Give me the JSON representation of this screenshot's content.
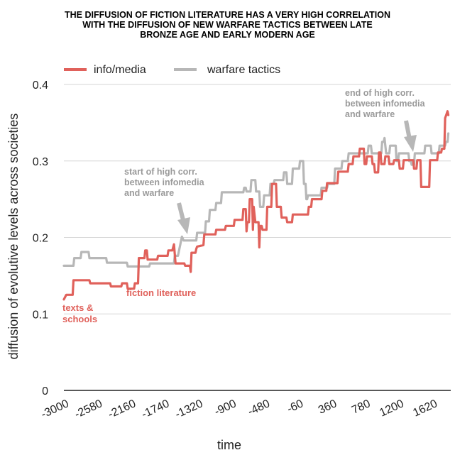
{
  "chart_data": {
    "type": "line",
    "title_lines": [
      "THE DIFFUSION OF FICTION LITERATURE HAS A VERY HIGH CORRELATION",
      "WITH THE DIFFUSION OF NEW WARFARE TACTICS BETWEEN LATE",
      "BRONZE AGE AND EARLY MODERN AGE"
    ],
    "xlabel": "time",
    "ylabel": "diffusion of evolutive levels across societies",
    "xlim": [
      -3000,
      1850
    ],
    "ylim": [
      0,
      0.4
    ],
    "x_ticks": [
      -3000,
      -2580,
      -2160,
      -1740,
      -1320,
      -900,
      -480,
      -60,
      360,
      780,
      1200,
      1620
    ],
    "x_tick_labels": [
      "-3000",
      "-2580",
      "-2160",
      "-1740",
      "-1320",
      "-900",
      "-480",
      "-60",
      "360",
      "780",
      "1200",
      "1620"
    ],
    "y_ticks": [
      0,
      0.1,
      0.2,
      0.3,
      0.4
    ],
    "y_tick_labels": [
      "0",
      "0.1",
      "0.2",
      "0.3",
      "0.4"
    ],
    "grid": "horizontal",
    "legend_position": "top-left",
    "series": [
      {
        "name": "info/media",
        "color": "#e0615b",
        "points": [
          [
            -3000,
            0.119
          ],
          [
            -2970,
            0.125
          ],
          [
            -2890,
            0.125
          ],
          [
            -2880,
            0.144
          ],
          [
            -2680,
            0.144
          ],
          [
            -2670,
            0.14
          ],
          [
            -2420,
            0.14
          ],
          [
            -2410,
            0.136
          ],
          [
            -2280,
            0.136
          ],
          [
            -2270,
            0.14
          ],
          [
            -2210,
            0.14
          ],
          [
            -2200,
            0.133
          ],
          [
            -2120,
            0.133
          ],
          [
            -2110,
            0.14
          ],
          [
            -2070,
            0.14
          ],
          [
            -2060,
            0.173
          ],
          [
            -1990,
            0.173
          ],
          [
            -1980,
            0.183
          ],
          [
            -1960,
            0.183
          ],
          [
            -1950,
            0.171
          ],
          [
            -1830,
            0.171
          ],
          [
            -1820,
            0.176
          ],
          [
            -1700,
            0.176
          ],
          [
            -1690,
            0.183
          ],
          [
            -1640,
            0.183
          ],
          [
            -1620,
            0.191
          ],
          [
            -1600,
            0.166
          ],
          [
            -1490,
            0.166
          ],
          [
            -1480,
            0.163
          ],
          [
            -1420,
            0.163
          ],
          [
            -1410,
            0.155
          ],
          [
            -1400,
            0.18
          ],
          [
            -1350,
            0.18
          ],
          [
            -1340,
            0.185
          ],
          [
            -1330,
            0.188
          ],
          [
            -1250,
            0.19
          ],
          [
            -1240,
            0.204
          ],
          [
            -1100,
            0.204
          ],
          [
            -1090,
            0.21
          ],
          [
            -980,
            0.21
          ],
          [
            -970,
            0.215
          ],
          [
            -870,
            0.215
          ],
          [
            -860,
            0.223
          ],
          [
            -760,
            0.223
          ],
          [
            -750,
            0.237
          ],
          [
            -720,
            0.237
          ],
          [
            -710,
            0.208
          ],
          [
            -700,
            0.22
          ],
          [
            -680,
            0.22
          ],
          [
            -670,
            0.25
          ],
          [
            -640,
            0.25
          ],
          [
            -630,
            0.21
          ],
          [
            -620,
            0.24
          ],
          [
            -600,
            0.22
          ],
          [
            -560,
            0.22
          ],
          [
            -550,
            0.187
          ],
          [
            -540,
            0.215
          ],
          [
            -520,
            0.215
          ],
          [
            -510,
            0.21
          ],
          [
            -460,
            0.21
          ],
          [
            -450,
            0.24
          ],
          [
            -400,
            0.24
          ],
          [
            -390,
            0.27
          ],
          [
            -340,
            0.27
          ],
          [
            -330,
            0.24
          ],
          [
            -280,
            0.24
          ],
          [
            -270,
            0.226
          ],
          [
            -210,
            0.226
          ],
          [
            -200,
            0.22
          ],
          [
            -140,
            0.22
          ],
          [
            -130,
            0.23
          ],
          [
            60,
            0.23
          ],
          [
            70,
            0.24
          ],
          [
            100,
            0.24
          ],
          [
            110,
            0.25
          ],
          [
            230,
            0.25
          ],
          [
            240,
            0.261
          ],
          [
            290,
            0.261
          ],
          [
            300,
            0.271
          ],
          [
            430,
            0.271
          ],
          [
            440,
            0.286
          ],
          [
            560,
            0.286
          ],
          [
            570,
            0.296
          ],
          [
            620,
            0.296
          ],
          [
            630,
            0.306
          ],
          [
            700,
            0.306
          ],
          [
            710,
            0.316
          ],
          [
            760,
            0.316
          ],
          [
            770,
            0.296
          ],
          [
            790,
            0.296
          ],
          [
            800,
            0.306
          ],
          [
            860,
            0.306
          ],
          [
            870,
            0.296
          ],
          [
            890,
            0.296
          ],
          [
            900,
            0.285
          ],
          [
            940,
            0.285
          ],
          [
            950,
            0.311
          ],
          [
            970,
            0.311
          ],
          [
            980,
            0.296
          ],
          [
            1020,
            0.296
          ],
          [
            1030,
            0.306
          ],
          [
            1070,
            0.306
          ],
          [
            1080,
            0.296
          ],
          [
            1130,
            0.296
          ],
          [
            1140,
            0.301
          ],
          [
            1200,
            0.301
          ],
          [
            1210,
            0.29
          ],
          [
            1250,
            0.29
          ],
          [
            1260,
            0.301
          ],
          [
            1380,
            0.301
          ],
          [
            1390,
            0.29
          ],
          [
            1420,
            0.29
          ],
          [
            1430,
            0.301
          ],
          [
            1470,
            0.301
          ],
          [
            1480,
            0.266
          ],
          [
            1580,
            0.266
          ],
          [
            1590,
            0.301
          ],
          [
            1680,
            0.301
          ],
          [
            1690,
            0.311
          ],
          [
            1730,
            0.311
          ],
          [
            1740,
            0.316
          ],
          [
            1770,
            0.316
          ],
          [
            1780,
            0.356
          ],
          [
            1810,
            0.365
          ],
          [
            1820,
            0.36
          ]
        ]
      },
      {
        "name": "warfare tactics",
        "color": "#b7b7b7",
        "points": [
          [
            -3000,
            0.163
          ],
          [
            -2880,
            0.163
          ],
          [
            -2870,
            0.173
          ],
          [
            -2790,
            0.173
          ],
          [
            -2780,
            0.181
          ],
          [
            -2690,
            0.181
          ],
          [
            -2680,
            0.173
          ],
          [
            -2470,
            0.173
          ],
          [
            -2460,
            0.167
          ],
          [
            -2210,
            0.167
          ],
          [
            -2200,
            0.162
          ],
          [
            -1930,
            0.162
          ],
          [
            -1920,
            0.166
          ],
          [
            -1620,
            0.166
          ],
          [
            -1610,
            0.176
          ],
          [
            -1570,
            0.176
          ],
          [
            -1560,
            0.181
          ],
          [
            -1520,
            0.201
          ],
          [
            -1500,
            0.196
          ],
          [
            -1340,
            0.196
          ],
          [
            -1330,
            0.206
          ],
          [
            -1230,
            0.206
          ],
          [
            -1220,
            0.221
          ],
          [
            -1180,
            0.221
          ],
          [
            -1170,
            0.236
          ],
          [
            -1100,
            0.236
          ],
          [
            -1090,
            0.245
          ],
          [
            -1030,
            0.245
          ],
          [
            -1020,
            0.259
          ],
          [
            -750,
            0.259
          ],
          [
            -740,
            0.265
          ],
          [
            -720,
            0.265
          ],
          [
            -710,
            0.26
          ],
          [
            -660,
            0.26
          ],
          [
            -650,
            0.275
          ],
          [
            -600,
            0.275
          ],
          [
            -590,
            0.26
          ],
          [
            -550,
            0.26
          ],
          [
            -540,
            0.24
          ],
          [
            -500,
            0.24
          ],
          [
            -490,
            0.255
          ],
          [
            -420,
            0.255
          ],
          [
            -410,
            0.27
          ],
          [
            -370,
            0.27
          ],
          [
            -360,
            0.275
          ],
          [
            -250,
            0.275
          ],
          [
            -240,
            0.285
          ],
          [
            -210,
            0.285
          ],
          [
            -200,
            0.27
          ],
          [
            -140,
            0.27
          ],
          [
            -130,
            0.29
          ],
          [
            -50,
            0.29
          ],
          [
            -40,
            0.3
          ],
          [
            0,
            0.3
          ],
          [
            10,
            0.27
          ],
          [
            30,
            0.27
          ],
          [
            40,
            0.25
          ],
          [
            50,
            0.25
          ],
          [
            60,
            0.255
          ],
          [
            220,
            0.255
          ],
          [
            230,
            0.265
          ],
          [
            300,
            0.265
          ],
          [
            310,
            0.27
          ],
          [
            390,
            0.27
          ],
          [
            400,
            0.29
          ],
          [
            480,
            0.29
          ],
          [
            490,
            0.3
          ],
          [
            560,
            0.3
          ],
          [
            570,
            0.31
          ],
          [
            810,
            0.31
          ],
          [
            820,
            0.32
          ],
          [
            850,
            0.32
          ],
          [
            860,
            0.31
          ],
          [
            980,
            0.31
          ],
          [
            990,
            0.325
          ],
          [
            1010,
            0.325
          ],
          [
            1020,
            0.33
          ],
          [
            1040,
            0.31
          ],
          [
            1080,
            0.31
          ],
          [
            1090,
            0.32
          ],
          [
            1160,
            0.32
          ],
          [
            1170,
            0.3
          ],
          [
            1190,
            0.3
          ],
          [
            1200,
            0.31
          ],
          [
            1320,
            0.31
          ],
          [
            1330,
            0.3
          ],
          [
            1350,
            0.3
          ],
          [
            1360,
            0.295
          ],
          [
            1390,
            0.295
          ],
          [
            1400,
            0.31
          ],
          [
            1520,
            0.31
          ],
          [
            1530,
            0.32
          ],
          [
            1600,
            0.32
          ],
          [
            1610,
            0.31
          ],
          [
            1700,
            0.31
          ],
          [
            1710,
            0.32
          ],
          [
            1780,
            0.32
          ],
          [
            1790,
            0.325
          ],
          [
            1810,
            0.325
          ],
          [
            1820,
            0.336
          ]
        ]
      }
    ],
    "annotations": [
      {
        "name": "annotation-start-high-corr",
        "lines": [
          "start of high corr.",
          "between infomedia",
          "and warfare"
        ],
        "style": "gray",
        "arrow_to": [
          -1330,
          0.2
        ]
      },
      {
        "name": "annotation-end-high-corr",
        "lines": [
          "end of high corr.",
          "between infomedia",
          "and warfare"
        ],
        "style": "gray",
        "arrow_to": [
          1340,
          0.3
        ]
      },
      {
        "name": "annotation-fiction-literature",
        "lines": [
          "fiction literature"
        ],
        "style": "red"
      },
      {
        "name": "annotation-texts-schools",
        "lines": [
          "texts &",
          "schools"
        ],
        "style": "red"
      }
    ]
  }
}
